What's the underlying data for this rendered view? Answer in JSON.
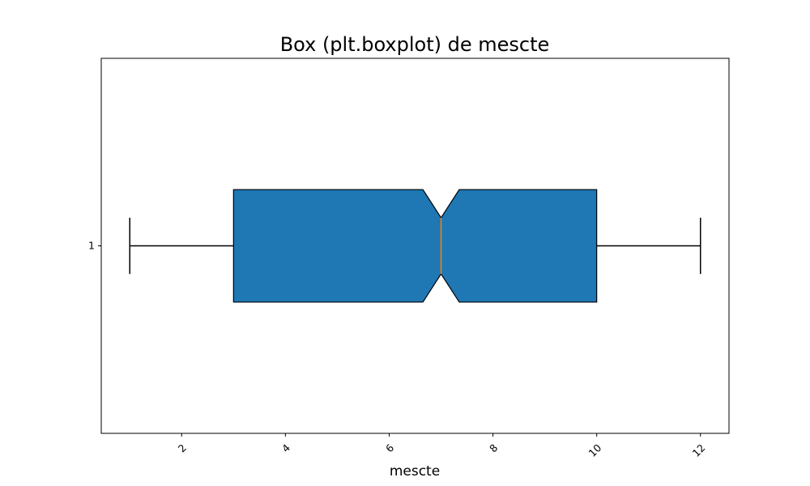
{
  "chart_data": {
    "type": "boxplot",
    "orientation": "horizontal",
    "notched": true,
    "title": "Box (plt.boxplot) de mescte",
    "xlabel": "mescte",
    "ylabel": "",
    "xlim": [
      0.45,
      12.55
    ],
    "ylim": [
      0.5,
      1.5
    ],
    "x_ticks": [
      2,
      4,
      6,
      8,
      10,
      12
    ],
    "x_tick_labels": [
      "2",
      "4",
      "6",
      "8",
      "10",
      "12"
    ],
    "x_tick_rotation": -45,
    "y_ticks": [
      1
    ],
    "y_tick_labels": [
      "1"
    ],
    "grid": false,
    "boxes": [
      {
        "position": 1,
        "whisker_low": 1,
        "q1": 3,
        "median": 7,
        "q3": 10,
        "whisker_high": 12,
        "notch_low": 6.65,
        "notch_high": 7.35
      }
    ],
    "colors": {
      "box_fill": "#1f77b4",
      "box_edge": "#000000",
      "median": "#ff7f0e",
      "whisker": "#000000",
      "axes": "#000000"
    }
  }
}
